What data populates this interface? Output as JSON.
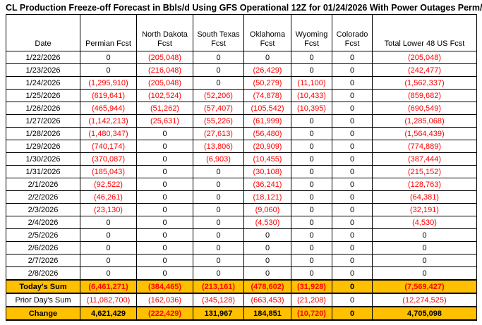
{
  "title": "CL Production Freeze-off Forecast in Bbls/d Using GFS Operational 12Z for 01/24/2026 With Power Outages Perm/NE",
  "colors": {
    "highlight_row_background": "#FFC000",
    "negative_value_text": "#FF0000",
    "text": "#000000",
    "border": "#000000",
    "background": "#FFFFFF"
  },
  "chart_data": {
    "type": "table",
    "title": "CL Production Freeze-off Forecast in Bbls/d Using GFS Operational 12Z for 01/24/2026 With Power Outages Perm/NE",
    "columns": [
      "Date",
      "Permian Fcst",
      "North Dakota Fcst",
      "South Texas Fcst",
      "Oklahoma Fcst",
      "Wyoming Fcst",
      "Colorado Fcst",
      "Total Lower 48 US Fcst"
    ],
    "rows": [
      [
        "1/22/2026",
        "0",
        "(205,048)",
        "0",
        "0",
        "0",
        "0",
        "(205,048)"
      ],
      [
        "1/23/2026",
        "0",
        "(216,048)",
        "0",
        "(26,429)",
        "0",
        "0",
        "(242,477)"
      ],
      [
        "1/24/2026",
        "(1,295,910)",
        "(205,048)",
        "0",
        "(50,279)",
        "(11,100)",
        "0",
        "(1,562,337)"
      ],
      [
        "1/25/2026",
        "(619,641)",
        "(102,524)",
        "(52,206)",
        "(74,878)",
        "(10,433)",
        "0",
        "(859,682)"
      ],
      [
        "1/26/2026",
        "(465,944)",
        "(51,262)",
        "(57,407)",
        "(105,542)",
        "(10,395)",
        "0",
        "(690,549)"
      ],
      [
        "1/27/2026",
        "(1,142,213)",
        "(25,631)",
        "(55,226)",
        "(61,999)",
        "0",
        "0",
        "(1,285,068)"
      ],
      [
        "1/28/2026",
        "(1,480,347)",
        "0",
        "(27,613)",
        "(56,480)",
        "0",
        "0",
        "(1,564,439)"
      ],
      [
        "1/29/2026",
        "(740,174)",
        "0",
        "(13,806)",
        "(20,909)",
        "0",
        "0",
        "(774,889)"
      ],
      [
        "1/30/2026",
        "(370,087)",
        "0",
        "(6,903)",
        "(10,455)",
        "0",
        "0",
        "(387,444)"
      ],
      [
        "1/31/2026",
        "(185,043)",
        "0",
        "0",
        "(30,108)",
        "0",
        "0",
        "(215,152)"
      ],
      [
        "2/1/2026",
        "(92,522)",
        "0",
        "0",
        "(36,241)",
        "0",
        "0",
        "(128,763)"
      ],
      [
        "2/2/2026",
        "(46,261)",
        "0",
        "0",
        "(18,121)",
        "0",
        "0",
        "(64,381)"
      ],
      [
        "2/3/2026",
        "(23,130)",
        "0",
        "0",
        "(9,060)",
        "0",
        "0",
        "(32,191)"
      ],
      [
        "2/4/2026",
        "0",
        "0",
        "0",
        "(4,530)",
        "0",
        "0",
        "(4,530)"
      ],
      [
        "2/5/2026",
        "0",
        "0",
        "0",
        "0",
        "0",
        "0",
        "0"
      ],
      [
        "2/6/2026",
        "0",
        "0",
        "0",
        "0",
        "0",
        "0",
        "0"
      ],
      [
        "2/7/2026",
        "0",
        "0",
        "0",
        "0",
        "0",
        "0",
        "0"
      ],
      [
        "2/8/2026",
        "0",
        "0",
        "0",
        "0",
        "0",
        "0",
        "0"
      ]
    ],
    "summary_rows": [
      {
        "label": "Today's Sum",
        "values": [
          "(6,461,271)",
          "(384,465)",
          "(213,161)",
          "(478,602)",
          "(31,928)",
          "0",
          "(7,569,427)"
        ],
        "highlighted": true,
        "bold": true
      },
      {
        "label": "Prior Day's Sum",
        "values": [
          "(11,082,700)",
          "(162,036)",
          "(345,128)",
          "(663,453)",
          "(21,208)",
          "0",
          "(12,274,525)"
        ],
        "highlighted": false,
        "bold": false
      },
      {
        "label": "Change",
        "values": [
          "4,621,429",
          "(222,429)",
          "131,967",
          "184,851",
          "(10,720)",
          "0",
          "4,705,098"
        ],
        "highlighted": true,
        "bold": true
      }
    ]
  }
}
